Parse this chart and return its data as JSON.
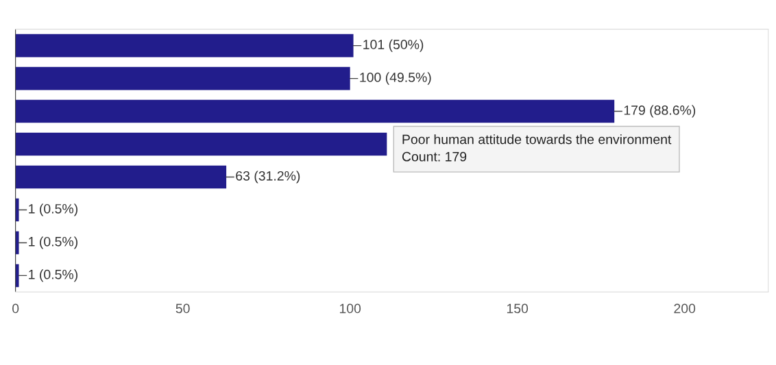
{
  "chart_data": {
    "type": "bar",
    "orientation": "horizontal",
    "categories": [
      null,
      null,
      null,
      null,
      null,
      null,
      null,
      null
    ],
    "values": [
      101,
      100,
      179,
      111,
      63,
      1,
      1,
      1
    ],
    "value_labels": [
      "101 (50%)",
      "100 (49.5%)",
      "179 (88.6%)",
      null,
      "63 (31.2%)",
      "1 (0.5%)",
      "1 (0.5%)",
      "1 (0.5%)"
    ],
    "color": "#221d8c",
    "xlim": [
      0,
      225
    ],
    "xticks": [
      0,
      50,
      100,
      150,
      200
    ],
    "grid": false,
    "legend": false,
    "annotations": [
      "Poor human attitude towards the environment",
      "Count: 179"
    ]
  }
}
